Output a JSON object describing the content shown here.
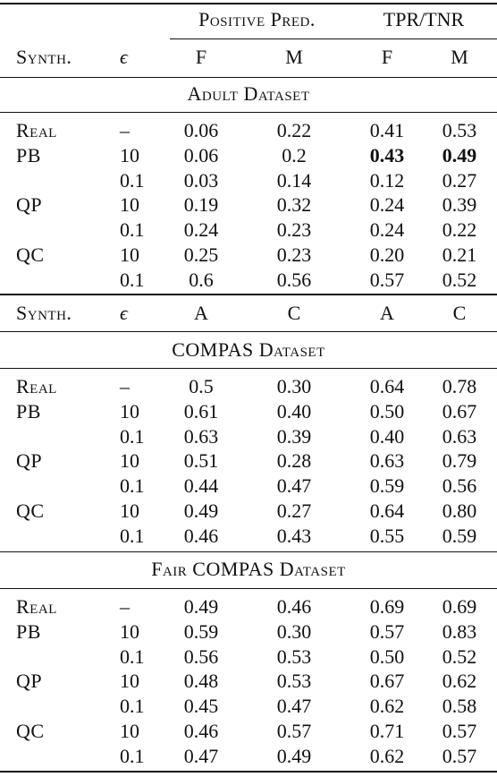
{
  "header": {
    "group_positive": "Positive Pred.",
    "group_tpr": "TPR/TNR",
    "col_synth": "Synth.",
    "col_eps": "ϵ",
    "adult_cols": [
      "F",
      "M",
      "F",
      "M"
    ],
    "compas_cols": [
      "A",
      "C",
      "A",
      "C"
    ]
  },
  "sections": [
    {
      "title": "Adult Dataset",
      "rows": [
        {
          "synth": "Real",
          "eps": "–",
          "v": [
            "0.06",
            "0.22",
            "0.41",
            "0.53"
          ]
        },
        {
          "synth": "PB",
          "eps": "10",
          "v": [
            "0.06",
            "0.2",
            "0.43",
            "0.49"
          ],
          "bold": [
            false,
            false,
            true,
            true
          ]
        },
        {
          "synth": "",
          "eps": "0.1",
          "v": [
            "0.03",
            "0.14",
            "0.12",
            "0.27"
          ]
        },
        {
          "synth": "QP",
          "eps": "10",
          "v": [
            "0.19",
            "0.32",
            "0.24",
            "0.39"
          ]
        },
        {
          "synth": "",
          "eps": "0.1",
          "v": [
            "0.24",
            "0.23",
            "0.24",
            "0.22"
          ]
        },
        {
          "synth": "QC",
          "eps": "10",
          "v": [
            "0.25",
            "0.23",
            "0.20",
            "0.21"
          ]
        },
        {
          "synth": "",
          "eps": "0.1",
          "v": [
            "0.6",
            "0.56",
            "0.57",
            "0.52"
          ]
        }
      ]
    },
    {
      "title": "COMPAS Dataset",
      "rows": [
        {
          "synth": "Real",
          "eps": "–",
          "v": [
            "0.5",
            "0.30",
            "0.64",
            "0.78"
          ]
        },
        {
          "synth": "PB",
          "eps": "10",
          "v": [
            "0.61",
            "0.40",
            "0.50",
            "0.67"
          ]
        },
        {
          "synth": "",
          "eps": "0.1",
          "v": [
            "0.63",
            "0.39",
            "0.40",
            "0.63"
          ]
        },
        {
          "synth": "QP",
          "eps": "10",
          "v": [
            "0.51",
            "0.28",
            "0.63",
            "0.79"
          ]
        },
        {
          "synth": "",
          "eps": "0.1",
          "v": [
            "0.44",
            "0.47",
            "0.59",
            "0.56"
          ]
        },
        {
          "synth": "QC",
          "eps": "10",
          "v": [
            "0.49",
            "0.27",
            "0.64",
            "0.80"
          ]
        },
        {
          "synth": "",
          "eps": "0.1",
          "v": [
            "0.46",
            "0.43",
            "0.55",
            "0.59"
          ]
        }
      ]
    },
    {
      "title": "Fair COMPAS Dataset",
      "rows": [
        {
          "synth": "Real",
          "eps": "–",
          "v": [
            "0.49",
            "0.46",
            "0.69",
            "0.69"
          ]
        },
        {
          "synth": "PB",
          "eps": "10",
          "v": [
            "0.59",
            "0.30",
            "0.57",
            "0.83"
          ]
        },
        {
          "synth": "",
          "eps": "0.1",
          "v": [
            "0.56",
            "0.53",
            "0.50",
            "0.52"
          ]
        },
        {
          "synth": "QP",
          "eps": "10",
          "v": [
            "0.48",
            "0.53",
            "0.67",
            "0.62"
          ]
        },
        {
          "synth": "",
          "eps": "0.1",
          "v": [
            "0.45",
            "0.47",
            "0.62",
            "0.58"
          ]
        },
        {
          "synth": "QC",
          "eps": "10",
          "v": [
            "0.46",
            "0.57",
            "0.71",
            "0.57"
          ]
        },
        {
          "synth": "",
          "eps": "0.1",
          "v": [
            "0.47",
            "0.49",
            "0.62",
            "0.57"
          ]
        }
      ]
    }
  ]
}
